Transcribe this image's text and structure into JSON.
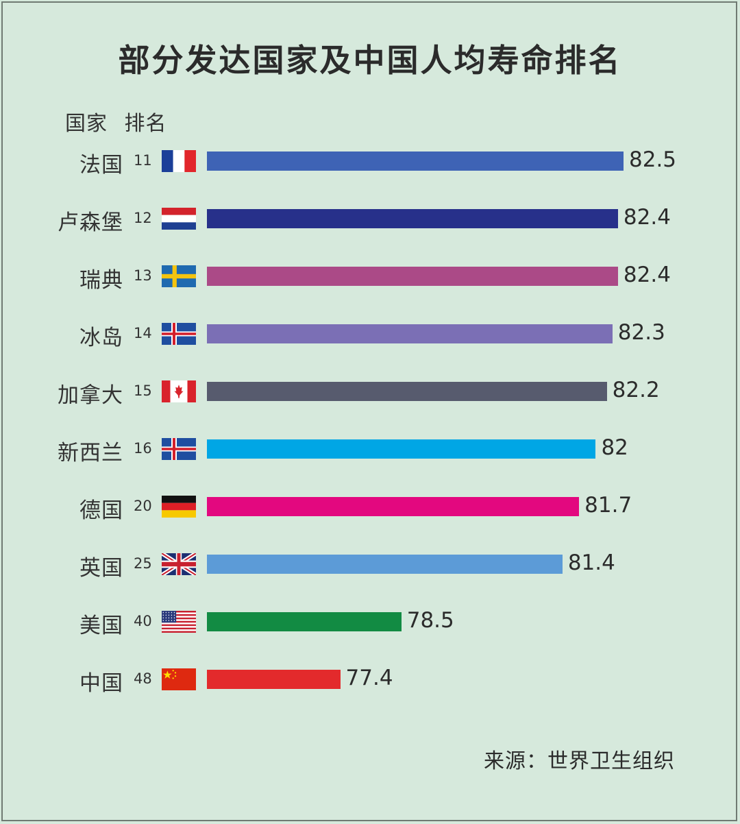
{
  "chart_data": {
    "type": "bar",
    "orientation": "horizontal",
    "title": "部分发达国家及中国人均寿命排名",
    "header": {
      "country": "国家",
      "rank": "排名"
    },
    "source": "来源：世界卫生组织",
    "rows": [
      {
        "country": "法国",
        "rank": "11",
        "value": 82.5,
        "color": "#3e63b5",
        "flag": "france-flag-icon"
      },
      {
        "country": "卢森堡",
        "rank": "12",
        "value": 82.4,
        "color": "#27308a",
        "flag": "netherlands-style-flag-icon"
      },
      {
        "country": "瑞典",
        "rank": "13",
        "value": 82.4,
        "color": "#ab4a87",
        "flag": "sweden-flag-icon"
      },
      {
        "country": "冰岛",
        "rank": "14",
        "value": 82.3,
        "color": "#7b6fb5",
        "flag": "iceland-flag-icon"
      },
      {
        "country": "加拿大",
        "rank": "15",
        "value": 82.2,
        "color": "#575b6e",
        "flag": "canada-flag-icon"
      },
      {
        "country": "新西兰",
        "rank": "16",
        "value": 82,
        "color": "#00a6e5",
        "flag": "iceland-flag-icon"
      },
      {
        "country": "德国",
        "rank": "20",
        "value": 81.7,
        "color": "#e3087f",
        "flag": "germany-flag-icon"
      },
      {
        "country": "英国",
        "rank": "25",
        "value": 81.4,
        "color": "#5c9bd7",
        "flag": "uk-flag-icon"
      },
      {
        "country": "美国",
        "rank": "40",
        "value": 78.5,
        "color": "#128b43",
        "flag": "usa-flag-icon"
      },
      {
        "country": "中国",
        "rank": "48",
        "value": 77.4,
        "color": "#e32a2c",
        "flag": "china-flag-icon"
      }
    ]
  }
}
